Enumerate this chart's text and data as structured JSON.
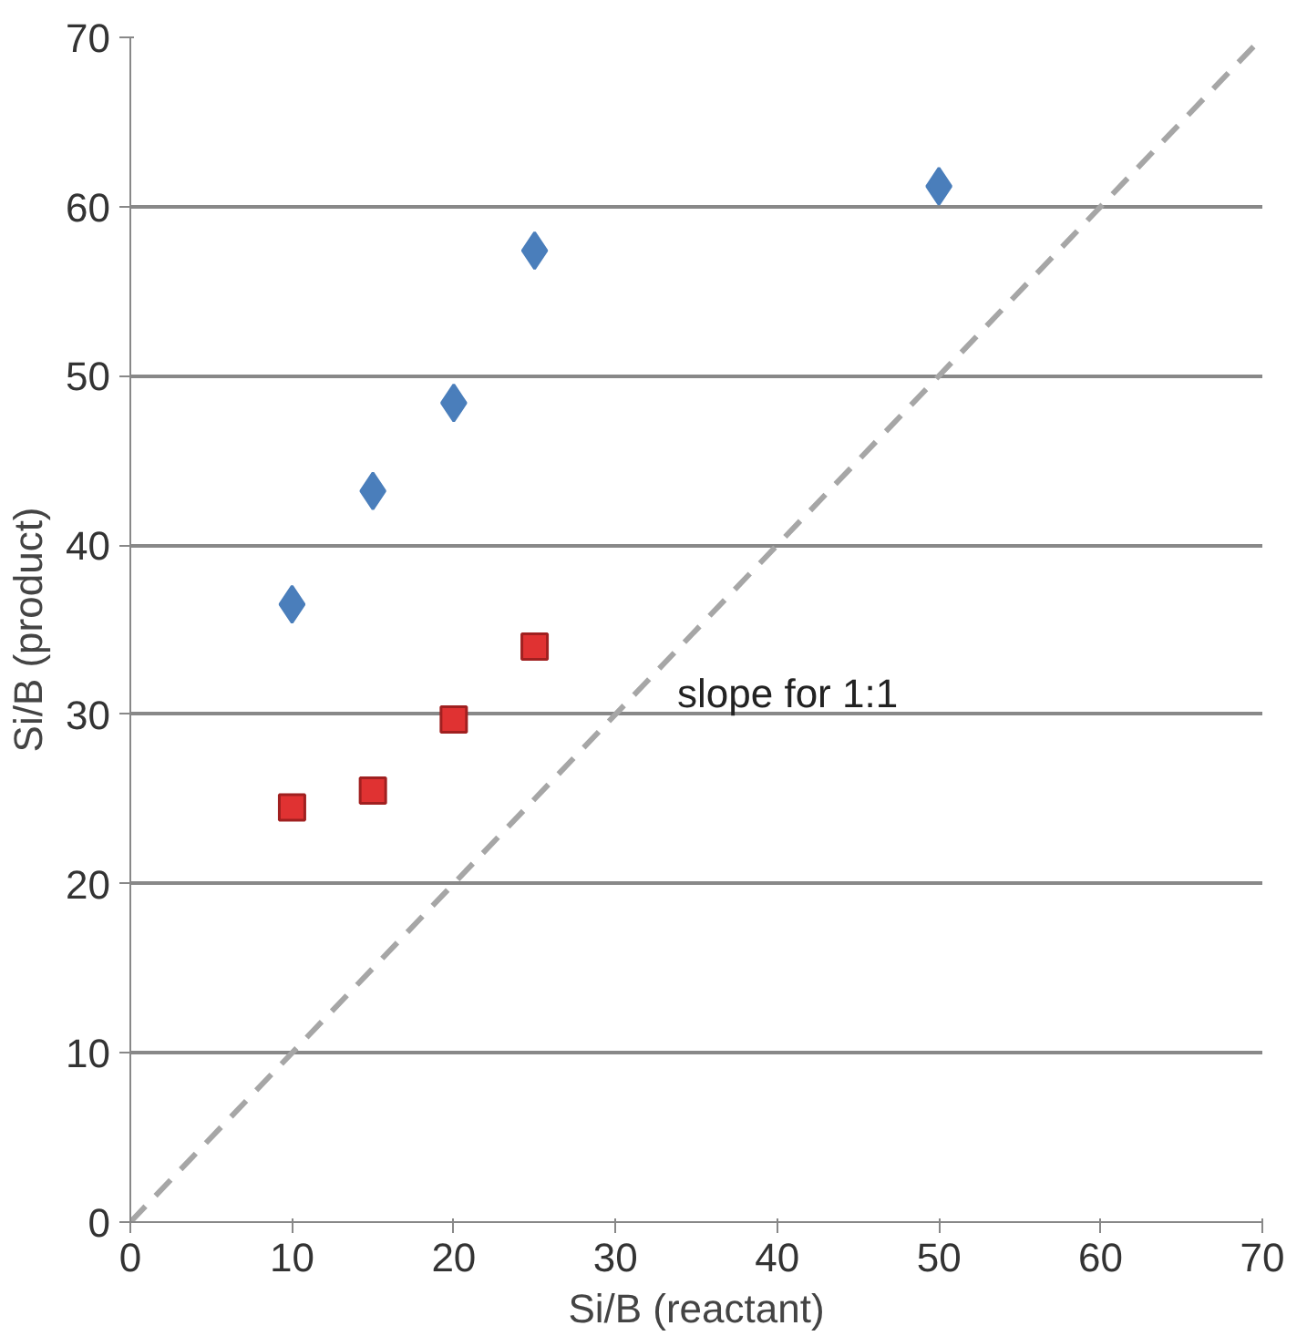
{
  "chart_data": {
    "type": "scatter",
    "xlabel": "Si/B (reactant)",
    "ylabel": "Si/B (product)",
    "xlim": [
      0,
      70
    ],
    "ylim": [
      0,
      70
    ],
    "xticks": [
      0,
      10,
      20,
      30,
      40,
      50,
      60,
      70
    ],
    "yticks": [
      0,
      10,
      20,
      30,
      40,
      50,
      60,
      70
    ],
    "grid": "y",
    "series": [
      {
        "color": "#4a7ebb",
        "marker": "diamond",
        "x": [
          10,
          15,
          20,
          25,
          50
        ],
        "values": [
          36.5,
          43.2,
          48.4,
          57.4,
          61.2
        ]
      },
      {
        "color": "#e03232",
        "marker": "square",
        "x": [
          10,
          15,
          20,
          25
        ],
        "values": [
          24.5,
          25.5,
          29.7,
          34.0
        ]
      },
      {
        "type": "line",
        "color": "#a6a6a6",
        "line_style": "dashed",
        "x": [
          0,
          70
        ],
        "values": [
          0,
          70
        ]
      }
    ],
    "annotations": [
      "slope for 1:1"
    ]
  }
}
